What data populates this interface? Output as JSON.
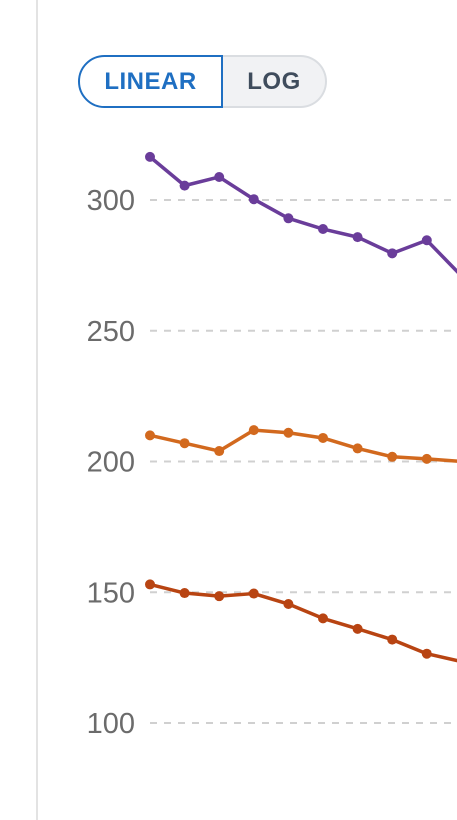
{
  "scale_toggle": {
    "options": [
      {
        "label": "LINEAR",
        "active": true
      },
      {
        "label": "LOG",
        "active": false
      }
    ]
  },
  "chart_data": {
    "type": "line",
    "x": [
      1,
      2,
      3,
      4,
      5,
      6,
      7,
      8,
      9,
      10
    ],
    "x_visible_fraction_note": "",
    "ylim": [
      93,
      325
    ],
    "yticks": [
      100,
      150,
      200,
      250,
      300
    ],
    "ytick_labels": [
      "100",
      "150",
      "200",
      "250",
      "300"
    ],
    "grid": true,
    "grid_style": "dashed-horizontal",
    "series": [
      {
        "color": "#6a3d9a",
        "values": [
          316.5,
          305.5,
          308.8,
          300.3,
          293.0,
          288.9,
          285.8,
          279.6,
          284.6,
          271.0
        ]
      },
      {
        "color": "#d2691e",
        "values": [
          210.0,
          207.0,
          204.0,
          212.0,
          211.0,
          209.0,
          205.0,
          201.8,
          201.0,
          200.0
        ]
      },
      {
        "color": "#b84412",
        "values": [
          153.0,
          149.7,
          148.5,
          149.5,
          145.5,
          140.0,
          136.0,
          131.9,
          126.5,
          123.5
        ]
      }
    ]
  }
}
